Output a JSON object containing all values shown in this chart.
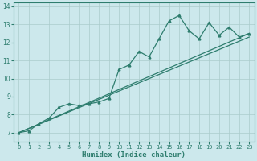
{
  "xlabel": "Humidex (Indice chaleur)",
  "bg_color": "#cce8ec",
  "line_color": "#2e7d6e",
  "xlim": [
    -0.5,
    23.5
  ],
  "ylim": [
    6.5,
    14.2
  ],
  "yticks": [
    7,
    8,
    9,
    10,
    11,
    12,
    13,
    14
  ],
  "xticks": [
    0,
    1,
    2,
    3,
    4,
    5,
    6,
    7,
    8,
    9,
    10,
    11,
    12,
    13,
    14,
    15,
    16,
    17,
    18,
    19,
    20,
    21,
    22,
    23
  ],
  "series1_x": [
    0,
    1,
    2,
    3,
    4,
    5,
    6,
    7,
    8,
    9,
    10,
    11,
    12,
    13,
    14,
    15,
    16,
    17,
    18,
    19,
    20,
    21,
    22,
    23
  ],
  "series1_y": [
    7.0,
    7.1,
    7.5,
    7.8,
    8.4,
    8.6,
    8.5,
    8.6,
    8.7,
    8.9,
    10.5,
    10.75,
    11.5,
    11.2,
    12.2,
    13.2,
    13.5,
    12.65,
    12.2,
    13.1,
    12.4,
    12.85,
    12.3,
    12.5
  ],
  "series2_x": [
    0,
    23
  ],
  "series2_y": [
    7.0,
    12.5
  ],
  "series3_x": [
    0,
    23
  ],
  "series3_y": [
    7.0,
    12.5
  ],
  "grid_color": "#aacccc",
  "spine_color": "#2e7d6e",
  "xlabel_color": "#2e7d6e",
  "tick_fontsize": 5.0,
  "xlabel_fontsize": 6.5
}
